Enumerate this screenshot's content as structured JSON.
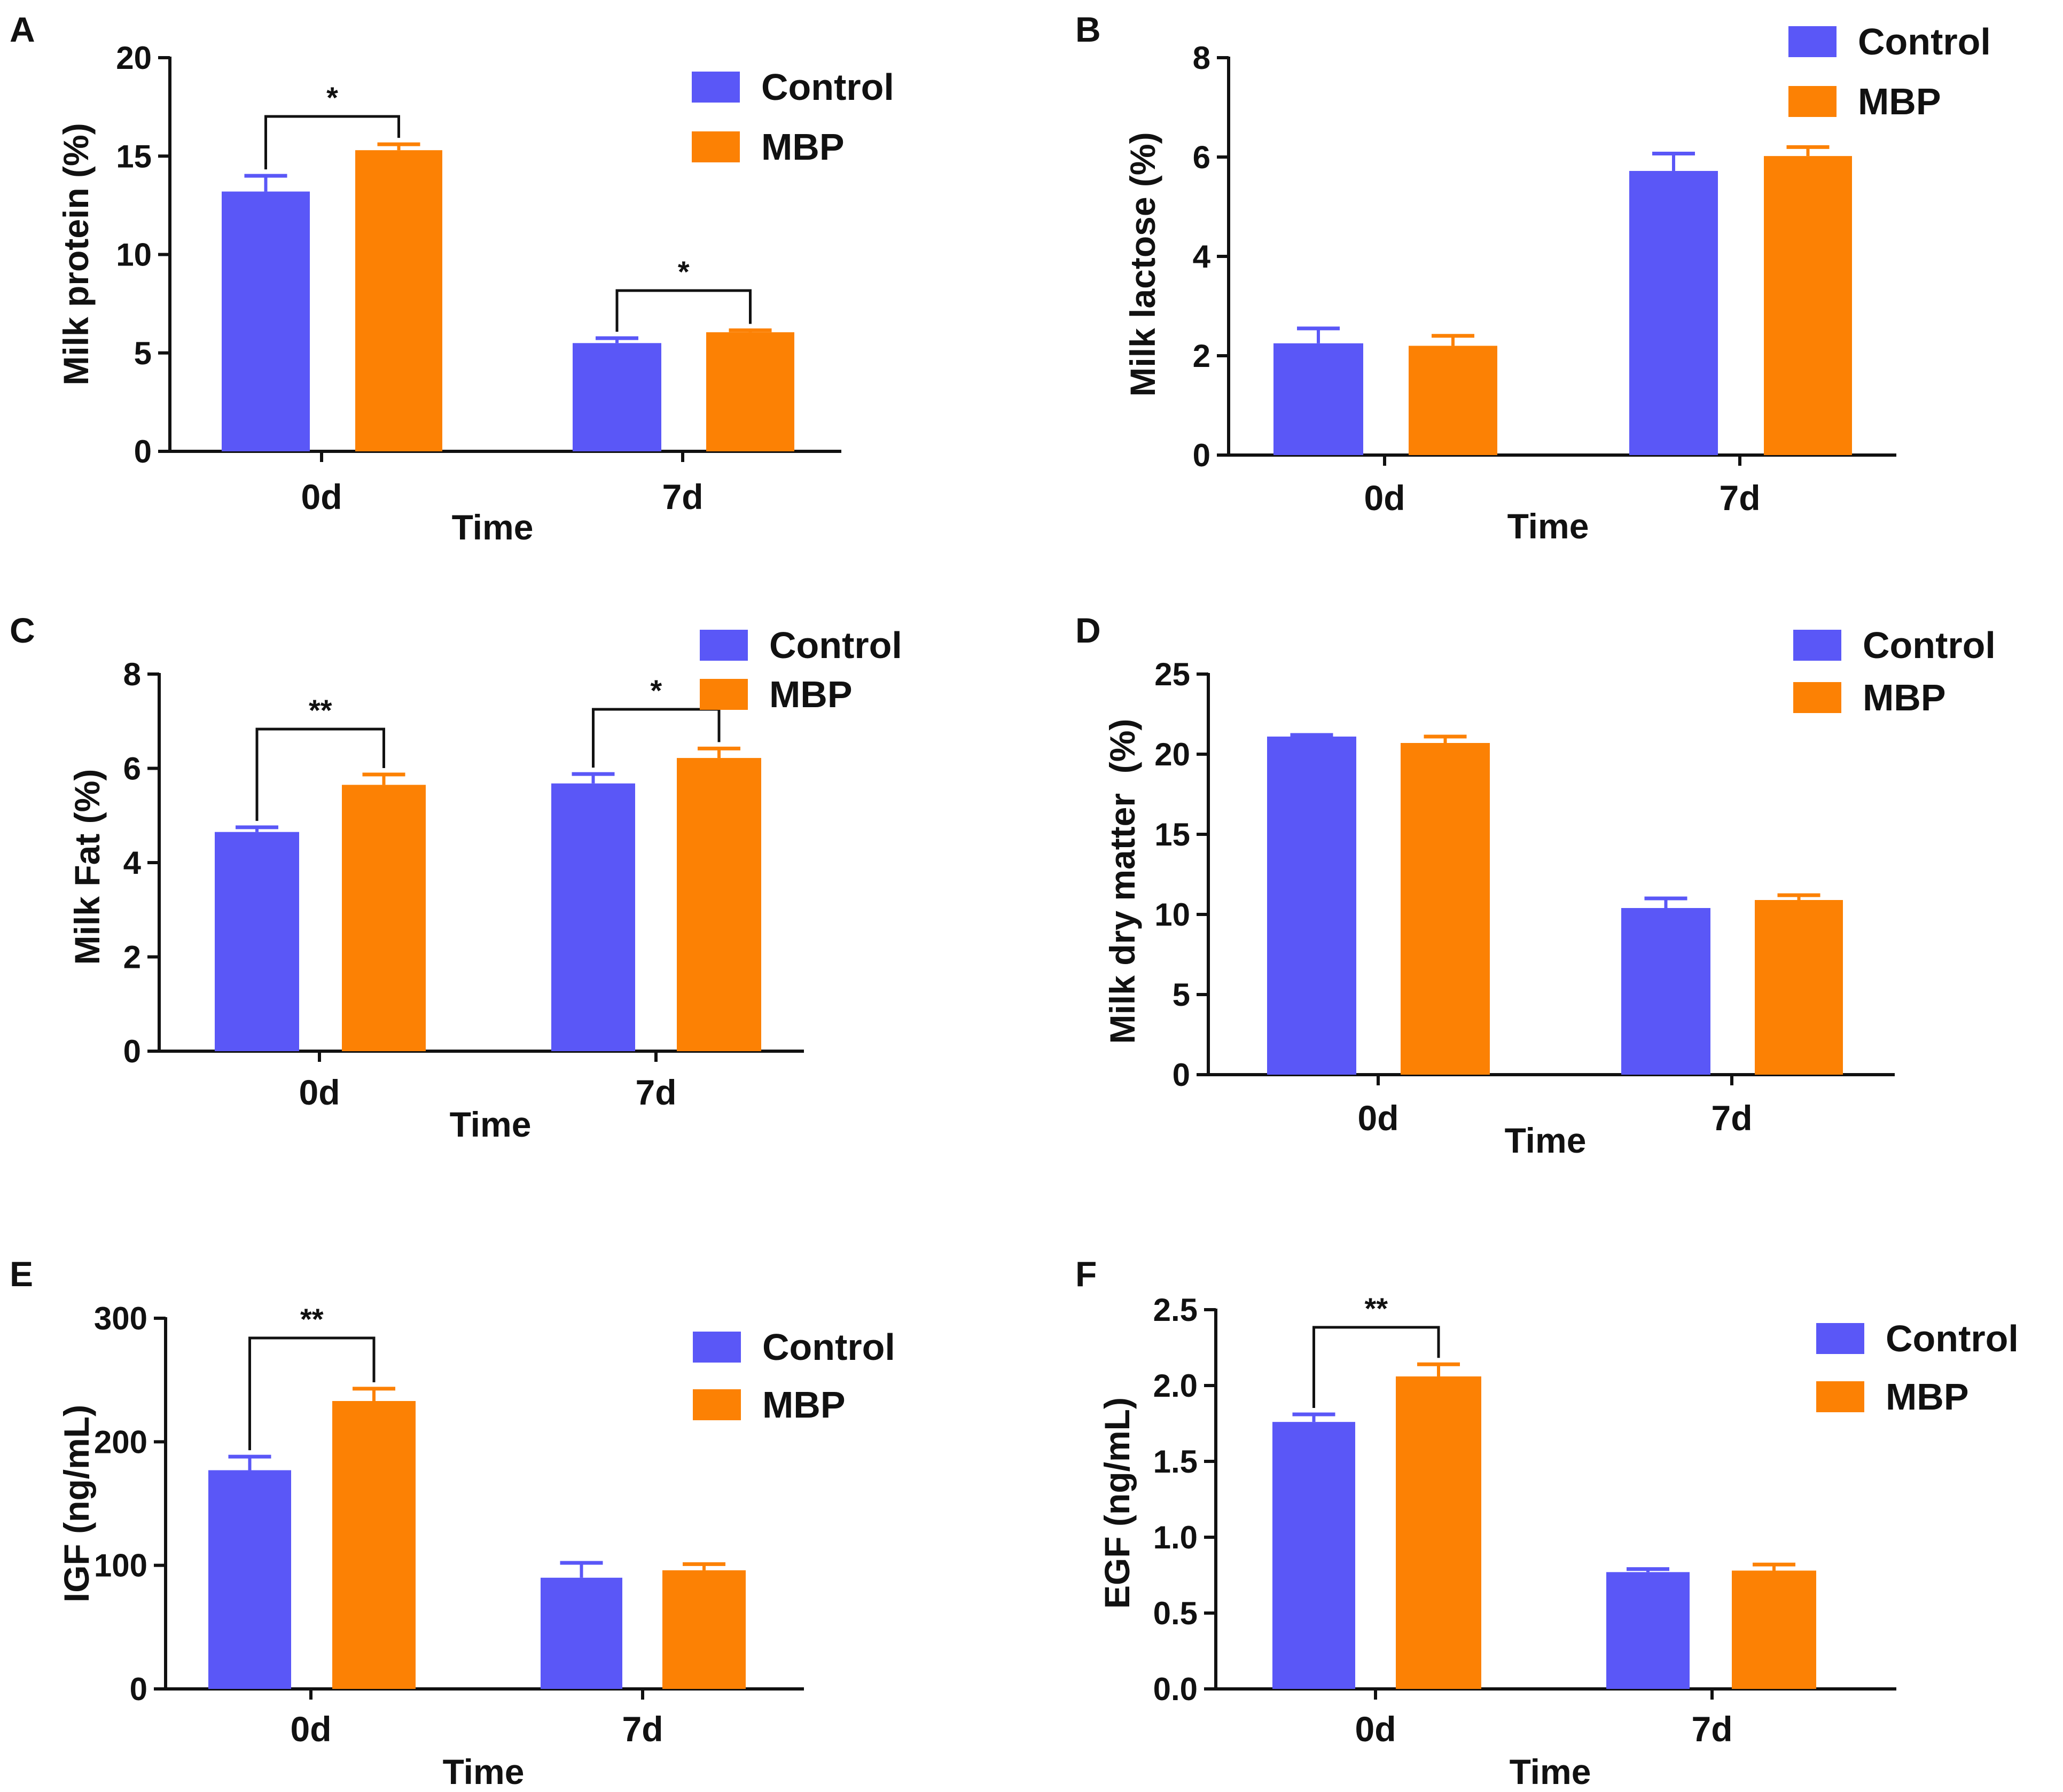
{
  "colors": {
    "control": "#5a57f7",
    "mbp": "#fc8104",
    "axis": "#111111"
  },
  "legend": {
    "control_label": "Control",
    "mbp_label": "MBP"
  },
  "chart_data": [
    {
      "panel": "A",
      "type": "bar",
      "title": "",
      "xlabel": "Time",
      "ylabel": "Milk protein (%)",
      "categories": [
        "0d",
        "7d"
      ],
      "ylim": [
        0,
        20
      ],
      "yticks": [
        0,
        5,
        10,
        15,
        20
      ],
      "ytick_labels": [
        "0",
        "5",
        "10",
        "15",
        "20"
      ],
      "series": [
        {
          "name": "Control",
          "values": [
            13.2,
            5.5
          ],
          "errors": [
            0.8,
            0.25
          ]
        },
        {
          "name": "MBP",
          "values": [
            15.3,
            6.05
          ],
          "errors": [
            0.3,
            0.1
          ]
        }
      ],
      "significance": [
        {
          "category": "0d",
          "label": "*"
        },
        {
          "category": "7d",
          "label": "*"
        }
      ]
    },
    {
      "panel": "B",
      "type": "bar",
      "title": "",
      "xlabel": "Time",
      "ylabel": "Milk lactose (%)",
      "categories": [
        "0d",
        "7d"
      ],
      "ylim": [
        0,
        8
      ],
      "yticks": [
        0,
        2,
        4,
        6,
        8
      ],
      "ytick_labels": [
        "0",
        "2",
        "4",
        "6",
        "8"
      ],
      "series": [
        {
          "name": "Control",
          "values": [
            2.25,
            5.72
          ],
          "errors": [
            0.3,
            0.35
          ]
        },
        {
          "name": "MBP",
          "values": [
            2.2,
            6.02
          ],
          "errors": [
            0.2,
            0.18
          ]
        }
      ],
      "significance": []
    },
    {
      "panel": "C",
      "type": "bar",
      "title": "",
      "xlabel": "Time",
      "ylabel": "Milk Fat (%)",
      "categories": [
        "0d",
        "7d"
      ],
      "ylim": [
        0,
        8
      ],
      "yticks": [
        0,
        2,
        4,
        6,
        8
      ],
      "ytick_labels": [
        "0",
        "2",
        "4",
        "6",
        "8"
      ],
      "series": [
        {
          "name": "Control",
          "values": [
            4.65,
            5.68
          ],
          "errors": [
            0.1,
            0.2
          ]
        },
        {
          "name": "MBP",
          "values": [
            5.65,
            6.22
          ],
          "errors": [
            0.22,
            0.2
          ]
        }
      ],
      "significance": [
        {
          "category": "0d",
          "label": "**"
        },
        {
          "category": "7d",
          "label": "*"
        }
      ]
    },
    {
      "panel": "D",
      "type": "bar",
      "title": "",
      "xlabel": "Time",
      "ylabel": "Milk dry matter  (%)",
      "categories": [
        "0d",
        "7d"
      ],
      "ylim": [
        0,
        25
      ],
      "yticks": [
        0,
        5,
        10,
        15,
        20,
        25
      ],
      "ytick_labels": [
        "0",
        "5",
        "10",
        "15",
        "20",
        "25"
      ],
      "series": [
        {
          "name": "Control",
          "values": [
            21.1,
            10.4
          ],
          "errors": [
            0.1,
            0.6
          ]
        },
        {
          "name": "MBP",
          "values": [
            20.7,
            10.9
          ],
          "errors": [
            0.4,
            0.3
          ]
        }
      ],
      "significance": []
    },
    {
      "panel": "E",
      "type": "bar",
      "title": "",
      "xlabel": "Time",
      "ylabel": "IGF (ng/mL)",
      "categories": [
        "0d",
        "7d"
      ],
      "ylim": [
        0,
        300
      ],
      "yticks": [
        0,
        100,
        200,
        300
      ],
      "ytick_labels": [
        "0",
        "100",
        "200",
        "300"
      ],
      "series": [
        {
          "name": "Control",
          "values": [
            177,
            90
          ],
          "errors": [
            11,
            12
          ]
        },
        {
          "name": "MBP",
          "values": [
            233,
            96
          ],
          "errors": [
            10,
            5
          ]
        }
      ],
      "significance": [
        {
          "category": "0d",
          "label": "**"
        }
      ]
    },
    {
      "panel": "F",
      "type": "bar",
      "title": "",
      "xlabel": "Time",
      "ylabel": "EGF (ng/mL)",
      "categories": [
        "0d",
        "7d"
      ],
      "ylim": [
        0,
        2.5
      ],
      "yticks": [
        0,
        0.5,
        1.0,
        1.5,
        2.0,
        2.5
      ],
      "ytick_labels": [
        "0.0",
        "0.5",
        "1.0",
        "1.5",
        "2.0",
        "2.5"
      ],
      "series": [
        {
          "name": "Control",
          "values": [
            1.76,
            0.77
          ],
          "errors": [
            0.05,
            0.02
          ]
        },
        {
          "name": "MBP",
          "values": [
            2.06,
            0.78
          ],
          "errors": [
            0.08,
            0.04
          ]
        }
      ],
      "significance": [
        {
          "category": "0d",
          "label": "**"
        }
      ]
    }
  ]
}
